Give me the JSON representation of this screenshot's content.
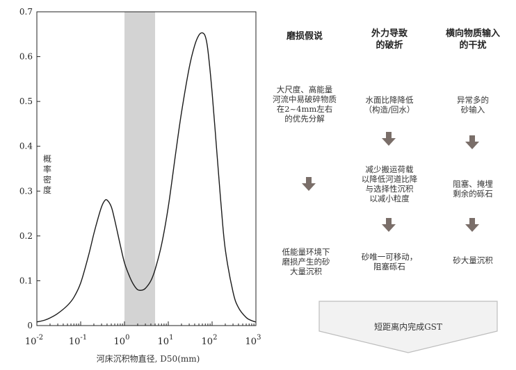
{
  "chart_data": {
    "type": "line",
    "title": "",
    "xlabel": "河床沉积物直径, D50(mm)",
    "ylabel": "概率密度",
    "xscale": "log",
    "xlim": [
      0.01,
      1000
    ],
    "ylim": [
      0,
      0.7
    ],
    "x_ticks": [
      {
        "base": "10",
        "exp": "-2"
      },
      {
        "base": "10",
        "exp": "-1"
      },
      {
        "base": "10",
        "exp": "0"
      },
      {
        "base": "10",
        "exp": "1"
      },
      {
        "base": "10",
        "exp": "2"
      },
      {
        "base": "10",
        "exp": "3"
      }
    ],
    "y_ticks": [
      "0",
      "0.1",
      "0.2",
      "0.3",
      "0.4",
      "0.5",
      "0.6",
      "0.7"
    ],
    "shaded_band": {
      "x_range": [
        1,
        5
      ],
      "color": "#d3d3d3"
    },
    "series": [
      {
        "color": "#1a1a1a",
        "x": [
          0.01,
          0.015,
          0.02,
          0.03,
          0.05,
          0.07,
          0.1,
          0.15,
          0.2,
          0.25,
          0.3,
          0.35,
          0.4,
          0.5,
          0.6,
          0.8,
          1.0,
          1.3,
          1.6,
          2.0,
          2.5,
          3.0,
          4.0,
          5.0,
          7.0,
          10,
          15,
          20,
          30,
          40,
          50,
          60,
          70,
          80,
          100,
          130,
          160,
          200,
          300,
          400,
          600,
          800,
          1000
        ],
        "y": [
          0.008,
          0.012,
          0.017,
          0.027,
          0.045,
          0.063,
          0.095,
          0.155,
          0.205,
          0.24,
          0.265,
          0.278,
          0.28,
          0.265,
          0.235,
          0.18,
          0.14,
          0.11,
          0.092,
          0.08,
          0.079,
          0.083,
          0.1,
          0.125,
          0.18,
          0.265,
          0.39,
          0.475,
          0.575,
          0.625,
          0.648,
          0.653,
          0.645,
          0.615,
          0.52,
          0.38,
          0.27,
          0.17,
          0.075,
          0.04,
          0.018,
          0.011,
          0.008
        ]
      }
    ]
  },
  "diagram": {
    "columns": [
      {
        "head": "磨损假说",
        "step1": "大尺度、高能量\n河流中易破碎物质\n在2~4mm左右\n的优先分解",
        "step3": "低能量环境下\n磨损产生的砂\n大量沉积"
      },
      {
        "head": "外力导致\n的破折",
        "step1": "水面比降降低\n（构造/回水）",
        "step2": "减少搬运荷载\n以降低河道比降\n与选择性沉积\n以减小粒度",
        "step3": "砂唯一可移动，\n阻塞砾石"
      },
      {
        "head": "横向物质输入\n的干扰",
        "step1": "异常多的\n砂输入",
        "step2": "阻塞、掩埋\n剩余的砾石",
        "step3": "砂大量沉积"
      }
    ],
    "conclusion": "短距离内完成GST",
    "arrow_color": "#7a6e69",
    "box_color": "#f2f2f2"
  }
}
